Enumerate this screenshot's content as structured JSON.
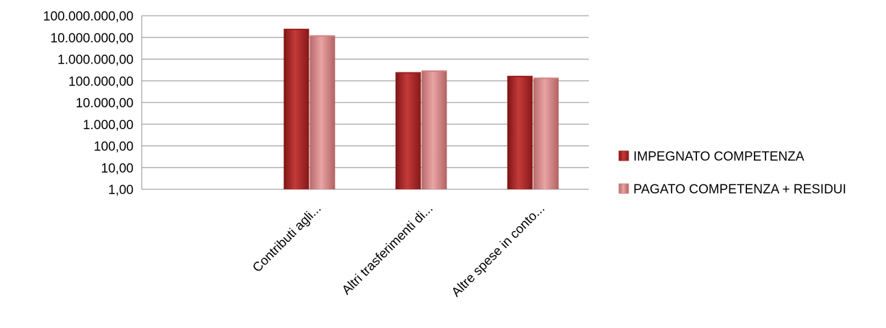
{
  "chart_data": {
    "type": "bar",
    "scale": "log",
    "categories": [
      "",
      "Contributi agli...",
      "Altri trasferimenti di...",
      "Altre spese in conto..."
    ],
    "series": [
      {
        "name": "IMPEGNATO COMPETENZA",
        "values": [
          null,
          25000000,
          250000,
          170000
        ],
        "color": "#b52a2a"
      },
      {
        "name": "PAGATO COMPETENZA + RESIDUI",
        "values": [
          null,
          12500000,
          300000,
          140000
        ],
        "color": "#d88c8c"
      }
    ],
    "y_ticks": [
      1,
      10,
      100,
      1000,
      10000,
      100000,
      1000000,
      10000000,
      100000000
    ],
    "y_tick_labels": [
      "1,00",
      "10,00",
      "100,00",
      "1.000,00",
      "10.000,00",
      "100.000,00",
      "1.000.000,00",
      "10.000.000,00",
      "100.000.000,00"
    ],
    "ylim": [
      1,
      100000000
    ],
    "grid": true,
    "legend": "right"
  }
}
